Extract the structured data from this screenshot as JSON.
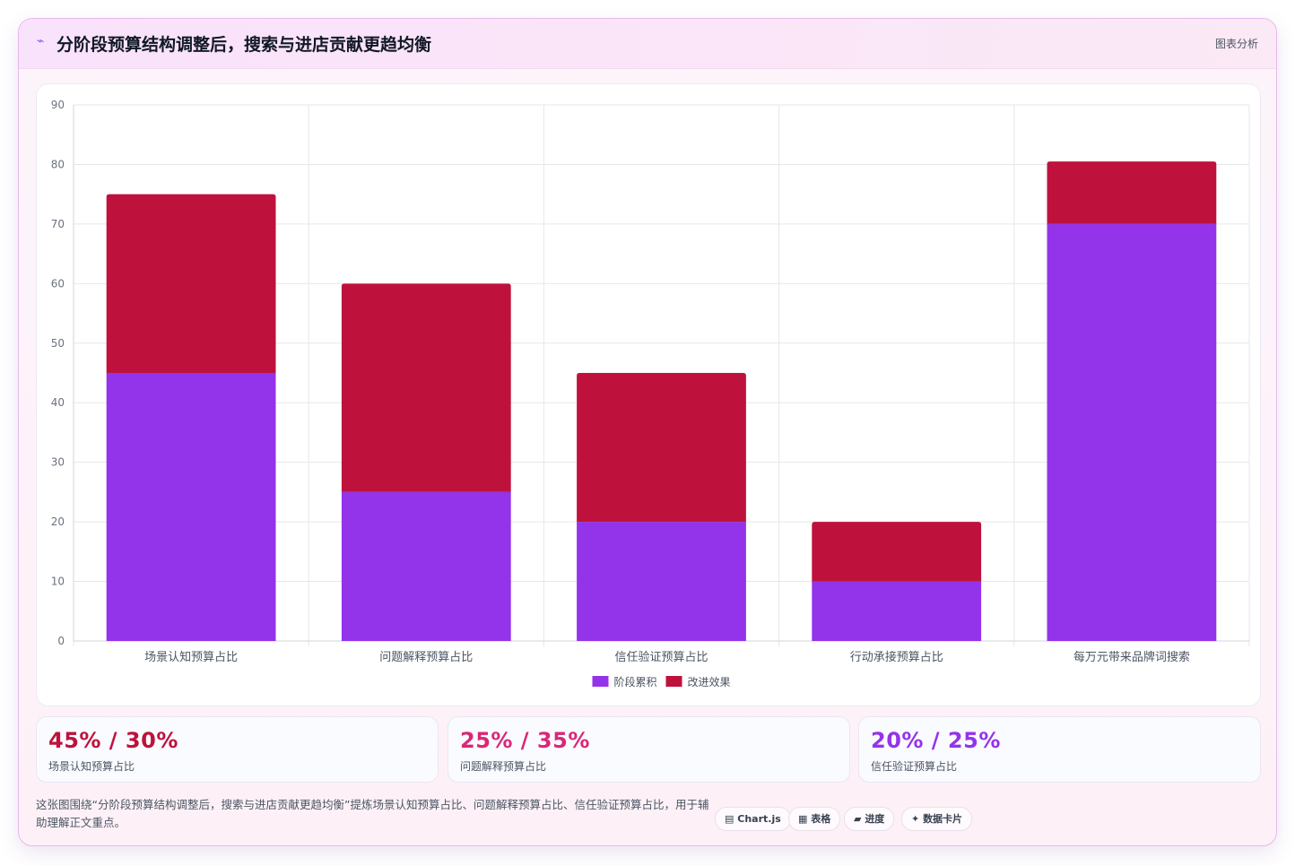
{
  "header": {
    "icon": "chart-line-icon",
    "title": "分阶段预算结构调整后，搜索与进店贡献更趋均衡",
    "tag": "图表分析"
  },
  "chart_data": {
    "type": "bar",
    "stacked": true,
    "categories": [
      "场景认知预算占比",
      "问题解释预算占比",
      "信任验证预算占比",
      "行动承接预算占比",
      "每万元带来品牌词搜索"
    ],
    "series": [
      {
        "name": "阶段累积",
        "color": "#9333ea",
        "values": [
          45,
          25,
          20,
          10,
          70
        ]
      },
      {
        "name": "改进效果",
        "color": "#be123c",
        "values": [
          30,
          35,
          25,
          10,
          10.5
        ]
      }
    ],
    "ylim": [
      0,
      90
    ],
    "yticks": [
      0,
      10,
      20,
      30,
      40,
      50,
      60,
      70,
      80,
      90
    ],
    "grid": true,
    "legend_position": "bottom"
  },
  "stats": [
    {
      "value": "45% / 30%",
      "label": "场景认知预算占比",
      "color": "#be123c"
    },
    {
      "value": "25% / 35%",
      "label": "问题解释预算占比",
      "color": "#db2777"
    },
    {
      "value": "20% / 25%",
      "label": "信任验证预算占比",
      "color": "#9333ea"
    }
  ],
  "footer": {
    "description": "这张图围绕“分阶段预算结构调整后，搜索与进店贡献更趋均衡”提炼场景认知预算占比、问题解释预算占比、信任验证预算占比，用于辅助理解正文重点。",
    "pills": [
      {
        "icon": "table-icon",
        "glyph": "▤",
        "label": "Chart.js"
      },
      {
        "icon": "grid-icon",
        "glyph": "▦",
        "label": "表格"
      },
      {
        "icon": "progress-icon",
        "glyph": "▰",
        "label": "进度"
      },
      {
        "icon": "sparkle-icon",
        "glyph": "✦",
        "label": "数据卡片"
      }
    ]
  }
}
